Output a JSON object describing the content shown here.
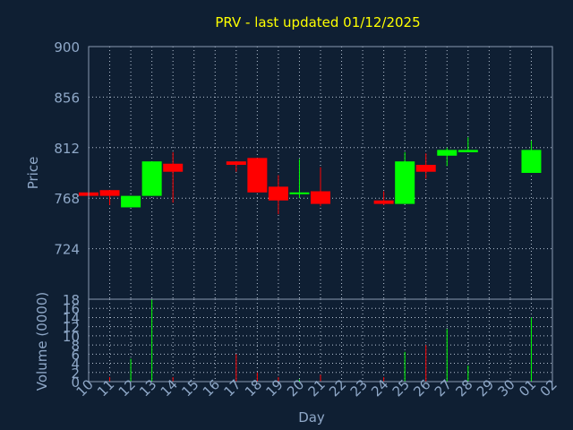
{
  "chart_data": [
    {
      "type": "candlestick",
      "title": "PRV - last updated 01/12/2025",
      "ylabel": "Price",
      "ylim": [
        680,
        900
      ],
      "yticks": [
        "900",
        "856",
        "812",
        "768",
        "724"
      ],
      "x_labels": [
        "10",
        "11",
        "12",
        "13",
        "14",
        "15",
        "16",
        "17",
        "18",
        "19",
        "20",
        "21",
        "22",
        "23",
        "24",
        "25",
        "26",
        "27",
        "28",
        "29",
        "30",
        "01",
        "02"
      ],
      "grid": true,
      "candles": [
        {
          "day": "10",
          "open": 773,
          "high": 773,
          "low": 770,
          "close": 770
        },
        {
          "day": "11",
          "open": 775,
          "high": 775,
          "low": 762,
          "close": 770
        },
        {
          "day": "12",
          "open": 760,
          "high": 770,
          "low": 760,
          "close": 770
        },
        {
          "day": "13",
          "open": 770,
          "high": 800,
          "low": 770,
          "close": 800
        },
        {
          "day": "14",
          "open": 798,
          "high": 808,
          "low": 764,
          "close": 791
        },
        {
          "day": "17",
          "open": 800,
          "high": 800,
          "low": 791,
          "close": 797
        },
        {
          "day": "18",
          "open": 803,
          "high": 803,
          "low": 773,
          "close": 773
        },
        {
          "day": "19",
          "open": 778,
          "high": 788,
          "low": 754,
          "close": 766
        },
        {
          "day": "20",
          "open": 772,
          "high": 802,
          "low": 768,
          "close": 773
        },
        {
          "day": "21",
          "open": 774,
          "high": 795,
          "low": 761,
          "close": 763
        },
        {
          "day": "24",
          "open": 766,
          "high": 774,
          "low": 762,
          "close": 763
        },
        {
          "day": "25",
          "open": 763,
          "high": 808,
          "low": 763,
          "close": 800
        },
        {
          "day": "26",
          "open": 797,
          "high": 807,
          "low": 785,
          "close": 791
        },
        {
          "day": "27",
          "open": 805,
          "high": 812,
          "low": 796,
          "close": 810
        },
        {
          "day": "28",
          "open": 808,
          "high": 821,
          "low": 808,
          "close": 810
        },
        {
          "day": "01",
          "open": 790,
          "high": 818,
          "low": 790,
          "close": 810
        }
      ]
    },
    {
      "type": "bar",
      "ylabel": "Volume (0000)",
      "xlabel": "Day",
      "ylim": [
        0,
        18
      ],
      "yticks": [
        "0",
        "2",
        "4",
        "6",
        "8",
        "10",
        "12",
        "14",
        "16",
        "18"
      ],
      "x_labels": [
        "10",
        "11",
        "12",
        "13",
        "14",
        "15",
        "16",
        "17",
        "18",
        "19",
        "20",
        "21",
        "22",
        "23",
        "24",
        "25",
        "26",
        "27",
        "28",
        "29",
        "30",
        "01",
        "02"
      ],
      "grid": true,
      "bars": [
        {
          "day": "11",
          "value": 1,
          "direction": "down"
        },
        {
          "day": "12",
          "value": 5,
          "direction": "up"
        },
        {
          "day": "13",
          "value": 18,
          "direction": "up"
        },
        {
          "day": "14",
          "value": 1,
          "direction": "down"
        },
        {
          "day": "17",
          "value": 6,
          "direction": "down"
        },
        {
          "day": "18",
          "value": 2,
          "direction": "down"
        },
        {
          "day": "19",
          "value": 1,
          "direction": "down"
        },
        {
          "day": "20",
          "value": 0.5,
          "direction": "up"
        },
        {
          "day": "21",
          "value": 1.5,
          "direction": "down"
        },
        {
          "day": "24",
          "value": 1,
          "direction": "down"
        },
        {
          "day": "25",
          "value": 6.5,
          "direction": "up"
        },
        {
          "day": "26",
          "value": 8,
          "direction": "down"
        },
        {
          "day": "27",
          "value": 11.5,
          "direction": "up"
        },
        {
          "day": "28",
          "value": 3.5,
          "direction": "up"
        },
        {
          "day": "01",
          "value": 14,
          "direction": "up"
        }
      ]
    }
  ],
  "colors": {
    "background": "#0f1f33",
    "title": "#ffff00",
    "axis_text": "#8fa8c8",
    "grid": "#b8c4d4",
    "frame": "#8898b0",
    "up": "#00ff00",
    "down": "#ff0000"
  }
}
